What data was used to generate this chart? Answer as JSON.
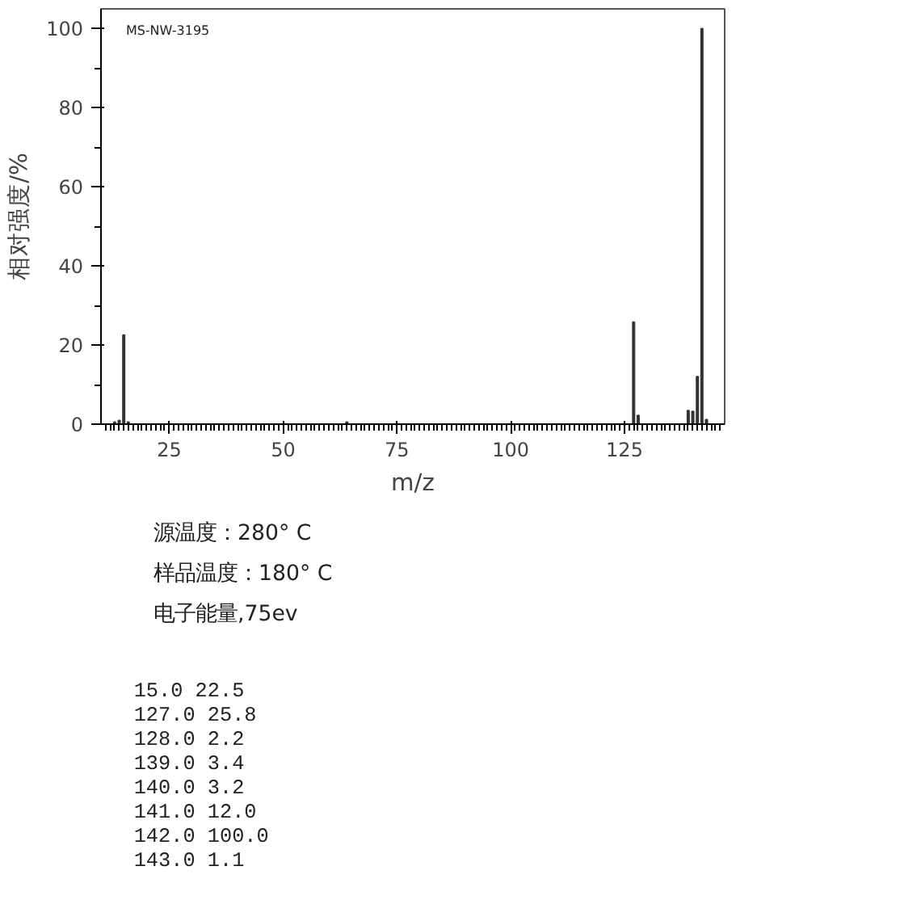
{
  "chart_data": {
    "type": "bar",
    "xlabel": "m/z",
    "ylabel": "相对强度/%",
    "x": [
      13,
      14,
      15,
      16,
      64,
      127,
      128,
      139,
      140,
      141,
      142,
      143
    ],
    "values": [
      0.5,
      0.9,
      22.5,
      0.5,
      0.5,
      25.8,
      2.2,
      3.4,
      3.2,
      12.0,
      100.0,
      1.1
    ],
    "color": "#333333",
    "xlim": [
      10,
      147
    ],
    "xticks": [
      25,
      50,
      75,
      100,
      125
    ],
    "ylim": [
      0,
      105
    ],
    "yticks": [
      0,
      20,
      40,
      60,
      80,
      100
    ],
    "grid": false,
    "annotations": [
      "MS-NW-3195",
      "源温度：280° C",
      "样品温度：180° C",
      "电子能量,75ev",
      "  15.0      22.5",
      " 127.0      25.8",
      " 128.0       2.2",
      " 139.0       3.4",
      " 140.0       3.2",
      " 141.0      12.0",
      " 142.0     100.0",
      " 143.0       1.1"
    ]
  }
}
